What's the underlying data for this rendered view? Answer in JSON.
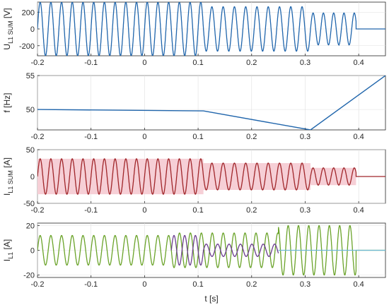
{
  "chart_data": [
    {
      "type": "line",
      "id": "voltage-panel",
      "ylabel_main": "U",
      "ylabel_sub": "L1 SUM",
      "ylabel_unit": " [V]",
      "xlim": [
        -0.2,
        0.45
      ],
      "ylim": [
        -320,
        320
      ],
      "xticks": [
        "-0.2",
        "-0.1",
        "0",
        "0.1",
        "0.2",
        "0.3",
        "0.4"
      ],
      "yticks": [
        "200",
        "0",
        "-200"
      ],
      "grid": true,
      "colors": {
        "main": "#2166ac"
      },
      "series": [
        {
          "segments": [
            {
              "t": [
                -0.2,
                0.11
              ],
              "amplitude": 320,
              "frequency_hz": 50
            },
            {
              "t": [
                0.11,
                0.31
              ],
              "amplitude": 265,
              "frequency_hz": 47.5
            },
            {
              "t": [
                0.31,
                0.395
              ],
              "amplitude": 190,
              "frequency_hz": 52
            },
            {
              "t": [
                0.395,
                0.45
              ],
              "amplitude": 0,
              "frequency_hz": 0
            }
          ]
        }
      ]
    },
    {
      "type": "line",
      "id": "frequency-panel",
      "ylabel_main": "f [Hz]",
      "xlim": [
        -0.2,
        0.45
      ],
      "ylim": [
        47,
        55
      ],
      "xticks": [
        "-0.2",
        "-0.1",
        "0",
        "0.1",
        "0.2",
        "0.3",
        "0.4"
      ],
      "yticks": [
        "55",
        "50"
      ],
      "grid": true,
      "colors": {
        "main": "#2166ac"
      },
      "series": [
        {
          "x": [
            -0.2,
            0.11,
            0.31,
            0.45
          ],
          "y": [
            50,
            49.8,
            47,
            55
          ]
        }
      ]
    },
    {
      "type": "line",
      "id": "current-sum-panel",
      "ylabel_main": "I",
      "ylabel_sub": "L1 SUM",
      "ylabel_unit": " [A]",
      "xlim": [
        -0.2,
        0.45
      ],
      "ylim": [
        -50,
        50
      ],
      "xticks": [
        "-0.2",
        "-0.1",
        "0",
        "0.1",
        "0.2",
        "0.3",
        "0.4"
      ],
      "yticks": [
        "50",
        "0",
        "-50"
      ],
      "grid": true,
      "colors": {
        "main": "#a0262a",
        "band": "#f6cfd6"
      },
      "series": [
        {
          "segments": [
            {
              "t": [
                -0.2,
                0.11
              ],
              "amplitude": 33,
              "frequency_hz": 50
            },
            {
              "t": [
                0.11,
                0.31
              ],
              "amplitude": 25,
              "frequency_hz": 47.5
            },
            {
              "t": [
                0.31,
                0.395
              ],
              "amplitude": 16,
              "frequency_hz": 52
            },
            {
              "t": [
                0.395,
                0.45
              ],
              "amplitude": 0,
              "frequency_hz": 0
            }
          ]
        }
      ]
    },
    {
      "type": "line",
      "id": "current-panel",
      "ylabel_main": "I",
      "ylabel_sub": "L1",
      "ylabel_unit": " [A]",
      "xlabel": "t [s]",
      "xlim": [
        -0.2,
        0.45
      ],
      "ylim": [
        -22,
        22
      ],
      "xticks": [
        "-0.2",
        "-0.1",
        "0",
        "0.1",
        "0.2",
        "0.3",
        "0.4"
      ],
      "yticks": [
        "20",
        "0",
        "-20"
      ],
      "grid": true,
      "colors": {
        "green": "#6aa329",
        "purple": "#6c3f8f",
        "lightblue": "#6fb9d6"
      },
      "series": [
        {
          "color": "green",
          "segments": [
            {
              "t": [
                -0.2,
                0.05
              ],
              "amplitude": 12,
              "frequency_hz": 50
            },
            {
              "t": [
                0.05,
                0.25
              ],
              "amplitude": 14,
              "frequency_hz": 49
            },
            {
              "t": [
                0.25,
                0.395
              ],
              "amplitude": 20,
              "frequency_hz": 52
            },
            {
              "t": [
                0.395,
                0.45
              ],
              "amplitude": 0,
              "frequency_hz": 0
            }
          ]
        },
        {
          "color": "purple",
          "segments": [
            {
              "t": [
                0.05,
                0.11
              ],
              "amplitude": 12,
              "frequency_hz": 50
            },
            {
              "t": [
                0.11,
                0.25
              ],
              "amplitude": 5,
              "frequency_hz": 47
            }
          ]
        },
        {
          "color": "lightblue",
          "segments": [
            {
              "t": [
                0.25,
                0.45
              ],
              "amplitude": 0,
              "frequency_hz": 0
            }
          ]
        }
      ]
    }
  ]
}
